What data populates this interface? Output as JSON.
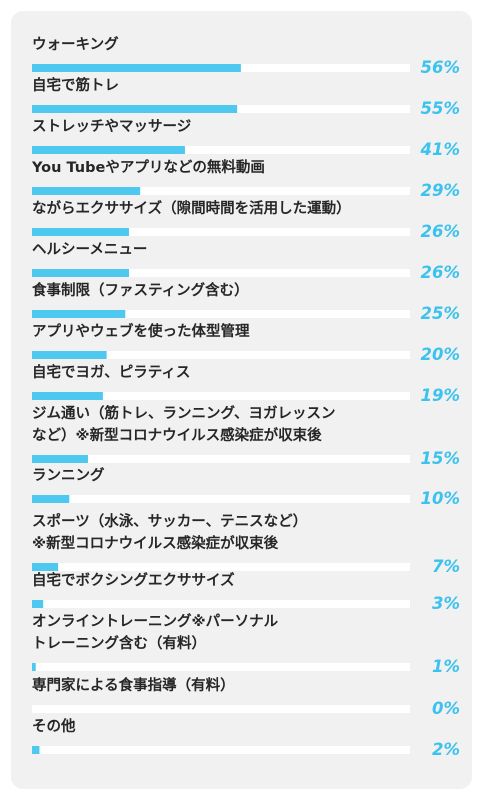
{
  "chart_data": {
    "type": "bar",
    "orientation": "horizontal",
    "bar_color": "#4fc8f0",
    "track_color": "#ffffff",
    "value_color": "#3cc2ee",
    "xlim": [
      0,
      100
    ],
    "categories": [
      [
        "ウォーキング"
      ],
      [
        "自宅で筋トレ"
      ],
      [
        "ストレッチやマッサージ"
      ],
      [
        "You Tubeやアプリなどの無料動画"
      ],
      [
        "ながらエクササイズ（隙間時間を活用した運動）"
      ],
      [
        "ヘルシーメニュー"
      ],
      [
        "食事制限（ファスティング含む）"
      ],
      [
        "アプリやウェブを使った体型管理"
      ],
      [
        "自宅でヨガ、ピラティス"
      ],
      [
        "ジム通い（筋トレ、ランニング、ヨガレッスン",
        "など）※新型コロナウイルス感染症が収束後"
      ],
      [
        "ランニング"
      ],
      [
        "スポーツ（水泳、サッカー、テニスなど）",
        "※新型コロナウイルス感染症が収束後"
      ],
      [
        "自宅でボクシングエクササイズ"
      ],
      [
        "オンライントレーニング※パーソナル",
        "トレーニング含む（有料）"
      ],
      [
        "専門家による食事指導（有料）"
      ],
      [
        "その他"
      ]
    ],
    "values": [
      56,
      55,
      41,
      29,
      26,
      26,
      25,
      20,
      19,
      15,
      10,
      7,
      3,
      1,
      0,
      2
    ],
    "value_labels": [
      "56%",
      "55%",
      "41%",
      "29%",
      "26%",
      "26%",
      "25%",
      "20%",
      "19%",
      "15%",
      "10%",
      "7%",
      "3%",
      "1%",
      "0%",
      "2%"
    ]
  }
}
